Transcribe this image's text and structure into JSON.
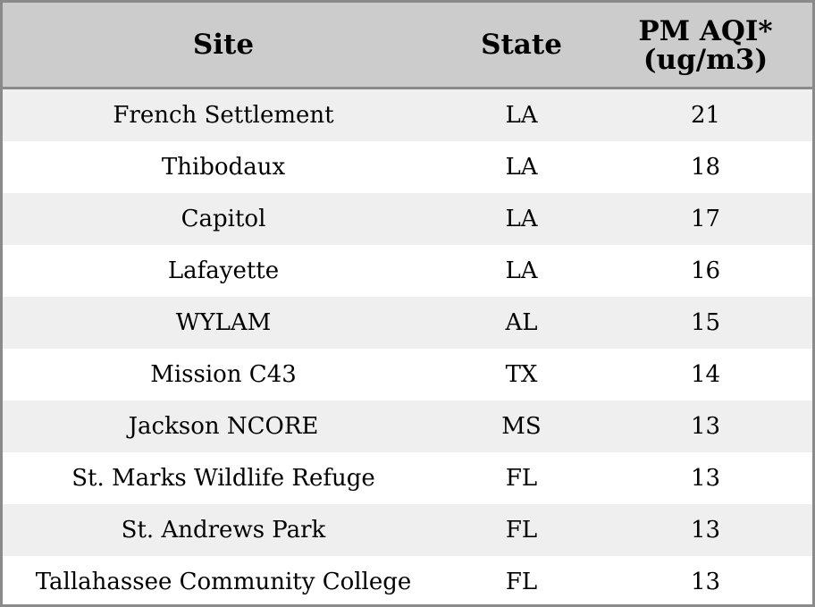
{
  "table": {
    "headers": {
      "site": "Site",
      "state": "State",
      "pm_line1": "PM AQI*",
      "pm_line2": "(ug/m3)"
    },
    "rows": [
      {
        "site": "French Settlement",
        "state": "LA",
        "pm": "21"
      },
      {
        "site": "Thibodaux",
        "state": "LA",
        "pm": "18"
      },
      {
        "site": "Capitol",
        "state": "LA",
        "pm": "17"
      },
      {
        "site": "Lafayette",
        "state": "LA",
        "pm": "16"
      },
      {
        "site": "WYLAM",
        "state": "AL",
        "pm": "15"
      },
      {
        "site": "Mission C43",
        "state": "TX",
        "pm": "14"
      },
      {
        "site": "Jackson NCORE",
        "state": "MS",
        "pm": "13"
      },
      {
        "site": "St. Marks Wildlife Refuge",
        "state": "FL",
        "pm": "13"
      },
      {
        "site": "St. Andrews Park",
        "state": "FL",
        "pm": "13"
      },
      {
        "site": "Tallahassee Community College",
        "state": "FL",
        "pm": "13"
      }
    ]
  },
  "colors": {
    "header_bg": "#cccccc",
    "row_alt_bg": "#efefef",
    "row_bg": "#ffffff",
    "border": "#8a8a8a"
  }
}
